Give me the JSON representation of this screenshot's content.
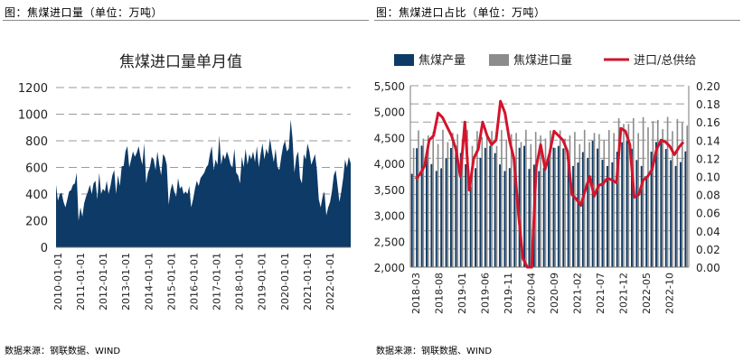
{
  "left": {
    "title": "图：焦煤进口量（单位：万吨）",
    "source": "数据来源：钢联数据、WIND"
  },
  "right": {
    "title": "图：焦煤进口占比（单位：万吨）",
    "source": "数据来源：钢联数据、WIND"
  },
  "chart_data": [
    {
      "type": "area",
      "title": "焦煤进口量单月值",
      "color": "#0d3a66",
      "xlabel": "",
      "ylabel": "",
      "ylim": [
        0,
        1200
      ],
      "yticks": [
        0,
        200,
        400,
        600,
        800,
        1000,
        1200
      ],
      "grid": "horizontal-dashed",
      "x_start": "2010-01",
      "tick_labels": [
        "2010-01-01",
        "2011-01-01",
        "2012-01-01",
        "2013-01-01",
        "2014-01-01",
        "2015-01-01",
        "2016-01-01",
        "2017-01-01",
        "2018-01-01",
        "2019-01-01",
        "2020-01-01",
        "2021-01-01",
        "2022-01-01"
      ],
      "values": [
        470,
        350,
        400,
        410,
        340,
        300,
        360,
        420,
        430,
        470,
        480,
        560,
        200,
        300,
        230,
        330,
        380,
        420,
        470,
        400,
        480,
        500,
        360,
        560,
        400,
        440,
        420,
        500,
        400,
        460,
        540,
        580,
        400,
        540,
        460,
        610,
        610,
        720,
        760,
        600,
        660,
        720,
        680,
        710,
        760,
        680,
        620,
        780,
        480,
        560,
        600,
        680,
        660,
        580,
        720,
        620,
        540,
        700,
        680,
        620,
        320,
        430,
        480,
        420,
        380,
        520,
        440,
        460,
        400,
        420,
        400,
        460,
        300,
        360,
        440,
        500,
        460,
        520,
        540,
        560,
        600,
        620,
        700,
        760,
        580,
        660,
        620,
        840,
        620,
        700,
        660,
        720,
        680,
        620,
        600,
        740,
        560,
        540,
        480,
        680,
        600,
        740,
        620,
        700,
        660,
        720,
        640,
        760,
        600,
        700,
        780,
        660,
        740,
        700,
        820,
        720,
        640,
        740,
        600,
        580,
        680,
        760,
        800,
        720,
        740,
        960,
        820,
        560,
        680,
        720,
        520,
        480,
        700,
        660,
        780,
        720,
        620,
        660,
        700,
        580,
        360,
        300,
        380,
        420,
        240,
        300,
        340,
        420,
        540,
        580,
        460,
        340,
        420,
        520,
        660,
        600,
        680,
        630
      ]
    },
    {
      "type": "bar+line",
      "legend": {
        "production": "焦煤产量",
        "imports": "焦煤进口量",
        "ratio": "进口/总供给"
      },
      "colors": {
        "production": "#0d3a66",
        "imports": "#8c8c8c",
        "ratio": "#d2142c"
      },
      "ylim_left": [
        2000,
        5500
      ],
      "yticks_left": [
        "2,000",
        "2,500",
        "3,000",
        "3,500",
        "4,000",
        "4,500",
        "5,000",
        "5,500"
      ],
      "ylim_right": [
        0,
        0.2
      ],
      "yticks_right": [
        "0.00",
        "0.02",
        "0.04",
        "0.06",
        "0.08",
        "0.10",
        "0.12",
        "0.14",
        "0.16",
        "0.18",
        "0.20"
      ],
      "tick_labels": [
        "2018-03",
        "2018-08",
        "2019-01",
        "2019-06",
        "2019-11",
        "2020-04",
        "2020-09",
        "2021-02",
        "2021-07",
        "2021-12",
        "2022-05",
        "2022-10"
      ],
      "ratio_points": [
        [
          0,
          0.097
        ],
        [
          1,
          0.103
        ],
        [
          2,
          0.112
        ],
        [
          3,
          0.14
        ],
        [
          4,
          0.145
        ],
        [
          5,
          0.17
        ],
        [
          6,
          0.165
        ],
        [
          7,
          0.155
        ],
        [
          8,
          0.145
        ],
        [
          9,
          0.13
        ],
        [
          10,
          0.1
        ],
        [
          11,
          0.16
        ],
        [
          12,
          0.085
        ],
        [
          13,
          0.12
        ],
        [
          14,
          0.13
        ],
        [
          15,
          0.16
        ],
        [
          16,
          0.145
        ],
        [
          17,
          0.135
        ],
        [
          18,
          0.14
        ],
        [
          19,
          0.183
        ],
        [
          20,
          0.17
        ],
        [
          21,
          0.14
        ],
        [
          22,
          0.12
        ],
        [
          23,
          0.06
        ],
        [
          24,
          0.01
        ],
        [
          25,
          0.0
        ],
        [
          26,
          0.0
        ],
        [
          27,
          0.11
        ],
        [
          28,
          0.135
        ],
        [
          29,
          0.108
        ],
        [
          30,
          0.125
        ],
        [
          31,
          0.15
        ],
        [
          32,
          0.145
        ],
        [
          33,
          0.14
        ],
        [
          34,
          0.128
        ],
        [
          35,
          0.08
        ],
        [
          36,
          0.075
        ],
        [
          37,
          0.068
        ],
        [
          38,
          0.085
        ],
        [
          39,
          0.1
        ],
        [
          40,
          0.078
        ],
        [
          41,
          0.09
        ],
        [
          42,
          0.092
        ],
        [
          43,
          0.098
        ],
        [
          44,
          0.096
        ],
        [
          45,
          0.093
        ],
        [
          46,
          0.153
        ],
        [
          47,
          0.15
        ],
        [
          48,
          0.135
        ],
        [
          49,
          0.077
        ],
        [
          50,
          0.08
        ],
        [
          51,
          0.096
        ],
        [
          52,
          0.1
        ],
        [
          53,
          0.108
        ],
        [
          54,
          0.13
        ],
        [
          55,
          0.14
        ],
        [
          56,
          0.138
        ],
        [
          57,
          0.133
        ],
        [
          58,
          0.124
        ],
        [
          59,
          0.132
        ],
        [
          60,
          0.138
        ]
      ]
    }
  ]
}
